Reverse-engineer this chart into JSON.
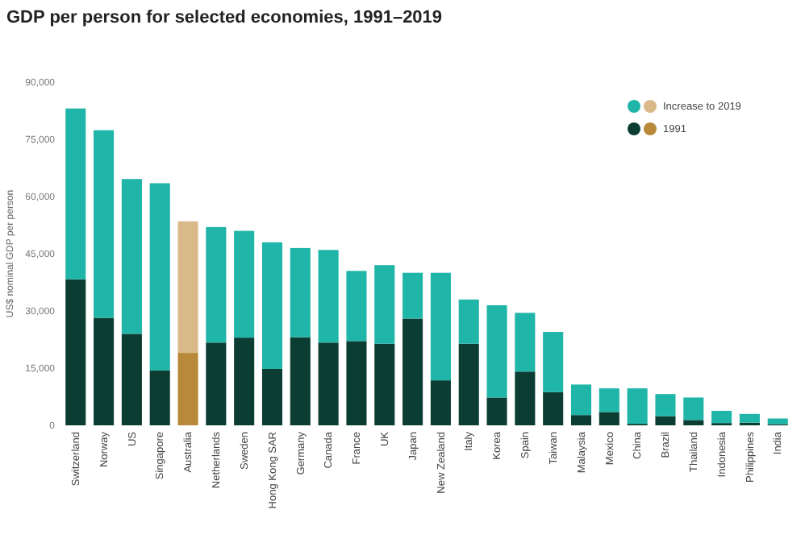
{
  "chart_data": {
    "type": "bar",
    "stacked": true,
    "title": "GDP per person for selected economies, 1991–2019",
    "ylabel": "US$ nominal GDP per person",
    "categories": [
      "Switzerland",
      "Norway",
      "US",
      "Singapore",
      "Australia",
      "Netherlands",
      "Sweden",
      "Hong Kong SAR",
      "Germany",
      "Canada",
      "France",
      "UK",
      "Japan",
      "New Zealand",
      "Italy",
      "Korea",
      "Spain",
      "Taiwan",
      "Malaysia",
      "Mexico",
      "China",
      "Brazil",
      "Thailand",
      "Indonesia",
      "Philippines",
      "India"
    ],
    "series": [
      {
        "name": "1991",
        "color": "#0b3d33",
        "colors": [
          "#0b3d33",
          "#0b3d33",
          "#0b3d33",
          "#0b3d33",
          "#b8893a",
          "#0b3d33",
          "#0b3d33",
          "#0b3d33",
          "#0b3d33",
          "#0b3d33",
          "#0b3d33",
          "#0b3d33",
          "#0b3d33",
          "#0b3d33",
          "#0b3d33",
          "#0b3d33",
          "#0b3d33",
          "#0b3d33",
          "#0b3d33",
          "#0b3d33",
          "#0b3d33",
          "#0b3d33",
          "#0b3d33",
          "#0b3d33",
          "#0b3d33",
          "#0b3d33"
        ],
        "values": [
          38300,
          28200,
          24000,
          14400,
          19000,
          21700,
          23000,
          14800,
          23100,
          21700,
          22100,
          21400,
          28000,
          11800,
          21400,
          7300,
          14100,
          8700,
          2700,
          3500,
          400,
          2400,
          1400,
          600,
          700,
          300
        ]
      },
      {
        "name": "Increase to 2019",
        "color": "#1fb5a8",
        "colors": [
          "#1fb5a8",
          "#1fb5a8",
          "#1fb5a8",
          "#1fb5a8",
          "#d9b98a",
          "#1fb5a8",
          "#1fb5a8",
          "#1fb5a8",
          "#1fb5a8",
          "#1fb5a8",
          "#1fb5a8",
          "#1fb5a8",
          "#1fb5a8",
          "#1fb5a8",
          "#1fb5a8",
          "#1fb5a8",
          "#1fb5a8",
          "#1fb5a8",
          "#1fb5a8",
          "#1fb5a8",
          "#1fb5a8",
          "#1fb5a8",
          "#1fb5a8",
          "#1fb5a8",
          "#1fb5a8",
          "#1fb5a8"
        ],
        "values": [
          44800,
          49200,
          40600,
          49100,
          34500,
          30300,
          28000,
          33200,
          23400,
          24300,
          18400,
          20600,
          12000,
          28200,
          11600,
          24200,
          15400,
          15800,
          8000,
          6200,
          9300,
          5800,
          5900,
          3200,
          2300,
          1500
        ]
      }
    ],
    "ylim": [
      0,
      90000
    ],
    "yticks": [
      0,
      {
        "value": 15000,
        "label": "15,000"
      },
      {
        "value": 30000,
        "label": "30,000"
      },
      {
        "value": 45000,
        "label": "45,000"
      },
      {
        "value": 60000,
        "label": "60,000"
      },
      {
        "value": 75000,
        "label": "75,000"
      },
      {
        "value": 90000,
        "label": "90,000"
      }
    ],
    "legend": "top right"
  }
}
